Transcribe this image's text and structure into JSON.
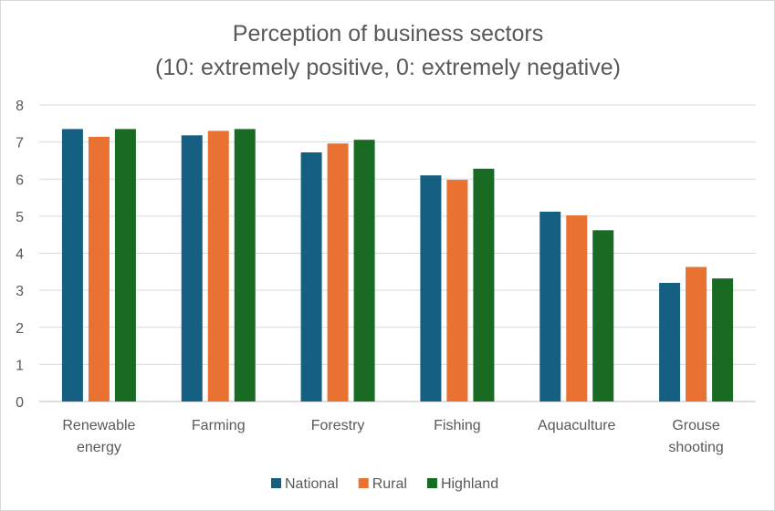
{
  "chart_data": {
    "type": "bar",
    "title": "Perception of business sectors",
    "subtitle": "(10: extremely positive, 0: extremely negative)",
    "xlabel": "",
    "ylabel": "",
    "categories": [
      [
        "Renewable",
        "energy"
      ],
      [
        "Farming"
      ],
      [
        "Forestry"
      ],
      [
        "Fishing"
      ],
      [
        "Aquaculture"
      ],
      [
        "Grouse",
        "shooting"
      ]
    ],
    "series": [
      {
        "name": "National",
        "color": "#156082",
        "values": [
          7.35,
          7.18,
          6.72,
          6.1,
          5.12,
          3.2
        ]
      },
      {
        "name": "Rural",
        "color": "#E97132",
        "values": [
          7.14,
          7.3,
          6.96,
          5.98,
          5.02,
          3.63
        ]
      },
      {
        "name": "Highland",
        "color": "#196B24",
        "values": [
          7.35,
          7.35,
          7.06,
          6.28,
          4.62,
          3.32
        ]
      }
    ],
    "ylim": [
      0,
      8
    ],
    "yticks": [
      "0",
      "1",
      "2",
      "3",
      "4",
      "5",
      "6",
      "7",
      "8"
    ],
    "grid": true,
    "legend_position": "bottom"
  }
}
